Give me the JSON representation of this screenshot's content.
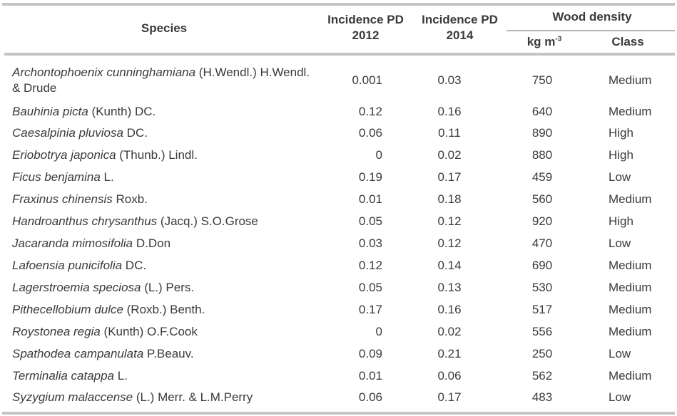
{
  "header": {
    "species": "Species",
    "incidence_2012": [
      "Incidence PD",
      "2012"
    ],
    "incidence_2014": [
      "Incidence PD",
      "2014"
    ],
    "wood_density": "Wood density",
    "density_unit": "kg m",
    "density_unit_exp": "-3",
    "class": "Class"
  },
  "rows": [
    {
      "genus": "Archontophoenix cunninghamiana",
      "author": " (H.Wendl.) H.Wendl.",
      "author2": "& Drude",
      "pd2012": "0.001",
      "pd2014": "0.03",
      "density": "750",
      "class": "Medium"
    },
    {
      "genus": "Bauhinia picta",
      "author": " (Kunth) DC.",
      "pd2012": "0.12",
      "pd2014": "0.16",
      "density": "640",
      "class": "Medium"
    },
    {
      "genus": "Caesalpinia pluviosa",
      "author": " DC.",
      "pd2012": "0.06",
      "pd2014": "0.11",
      "density": "890",
      "class": "High"
    },
    {
      "genus": "Eriobotrya japonica",
      "author": " (Thunb.) Lindl.",
      "pd2012": "0",
      "pd2014": "0.02",
      "density": "880",
      "class": "High"
    },
    {
      "genus": "Ficus benjamina",
      "author": " L.",
      "pd2012": "0.19",
      "pd2014": "0.17",
      "density": "459",
      "class": "Low"
    },
    {
      "genus": "Fraxinus chinensis",
      "author": " Roxb.",
      "pd2012": "0.01",
      "pd2014": "0.18",
      "density": "560",
      "class": "Medium"
    },
    {
      "genus": "Handroanthus chrysanthus",
      "author": " (Jacq.) S.O.Grose",
      "pd2012": "0.05",
      "pd2014": "0.12",
      "density": "920",
      "class": "High"
    },
    {
      "genus": "Jacaranda mimosifolia",
      "author": " D.Don",
      "pd2012": "0.03",
      "pd2014": "0.12",
      "density": "470",
      "class": "Low"
    },
    {
      "genus": "Lafoensia punicifolia",
      "author": " DC.",
      "pd2012": "0.12",
      "pd2014": "0.14",
      "density": "690",
      "class": "Medium"
    },
    {
      "genus": "Lagerstroemia speciosa",
      "author": " (L.) Pers.",
      "pd2012": "0.05",
      "pd2014": "0.13",
      "density": "530",
      "class": "Medium"
    },
    {
      "genus": "Pithecellobium dulce",
      "author": " (Roxb.) Benth.",
      "pd2012": "0.17",
      "pd2014": "0.16",
      "density": "517",
      "class": "Medium"
    },
    {
      "genus": "Roystonea regia",
      "author": " (Kunth) O.F.Cook",
      "pd2012": "0",
      "pd2014": "0.02",
      "density": "556",
      "class": "Medium"
    },
    {
      "genus": "Spathodea campanulata",
      "author": " P.Beauv.",
      "pd2012": "0.09",
      "pd2014": "0.21",
      "density": "250",
      "class": "Low"
    },
    {
      "genus": "Terminalia catappa",
      "author": " L.",
      "pd2012": "0.01",
      "pd2014": "0.06",
      "density": "562",
      "class": "Medium"
    },
    {
      "genus": "Syzygium malaccense",
      "author": " (L.) Merr. & L.M.Perry",
      "pd2012": "0.06",
      "pd2014": "0.17",
      "density": "483",
      "class": "Low"
    }
  ]
}
